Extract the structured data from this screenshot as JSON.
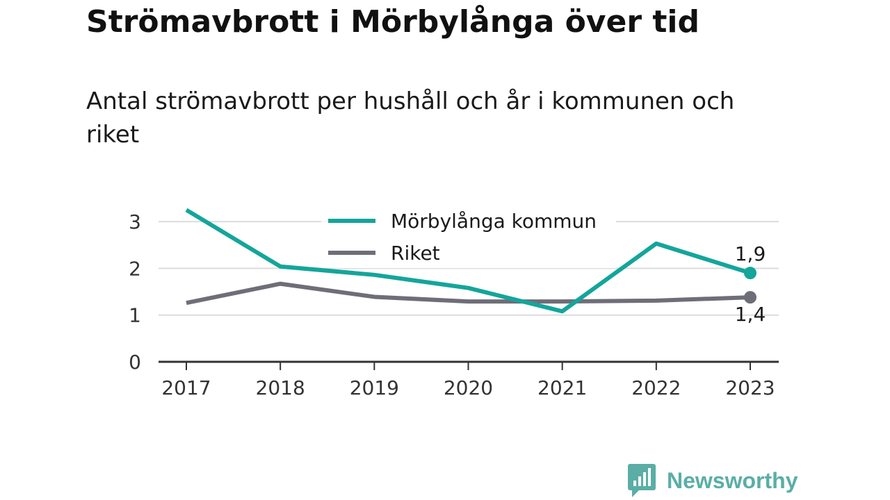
{
  "header": {
    "title": "Strömavbrott i Mörbylånga över tid",
    "subtitle": "Antal strömavbrott per hushåll och år i kommunen och riket"
  },
  "chart_data": {
    "type": "line",
    "x": [
      "2017",
      "2018",
      "2019",
      "2020",
      "2021",
      "2022",
      "2023"
    ],
    "ylim": [
      0,
      3.3
    ],
    "yticks": [
      "0",
      "1",
      "2",
      "3"
    ],
    "grid": true,
    "legend_position": "top-center",
    "series": [
      {
        "name": "Mörbylånga kommun",
        "color": "#14a59b",
        "values": [
          3.25,
          2.04,
          1.86,
          1.58,
          1.08,
          2.53,
          1.9
        ],
        "end_label": "1,9"
      },
      {
        "name": "Riket",
        "color": "#6e6e78",
        "values": [
          1.26,
          1.67,
          1.39,
          1.29,
          1.29,
          1.31,
          1.38
        ],
        "end_label": "1,4"
      }
    ]
  },
  "brand": {
    "name": "Newsworthy",
    "color": "#5aaea6",
    "icon": "newsworthy-logo-icon"
  }
}
